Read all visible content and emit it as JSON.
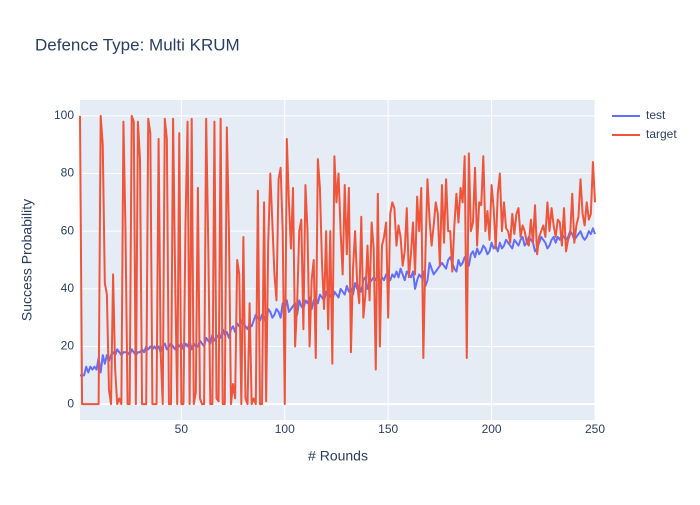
{
  "chart_data": {
    "type": "line",
    "title": "Defence Type: Multi KRUM",
    "x_label": "# Rounds",
    "y_label": "Success Probability",
    "x": [
      1,
      2,
      3,
      4,
      5,
      6,
      7,
      8,
      9,
      10,
      11,
      12,
      13,
      14,
      15,
      16,
      17,
      18,
      19,
      20,
      21,
      22,
      23,
      24,
      25,
      26,
      27,
      28,
      29,
      30,
      31,
      32,
      33,
      34,
      35,
      36,
      37,
      38,
      39,
      40,
      41,
      42,
      43,
      44,
      45,
      46,
      47,
      48,
      49,
      50,
      51,
      52,
      53,
      54,
      55,
      56,
      57,
      58,
      59,
      60,
      61,
      62,
      63,
      64,
      65,
      66,
      67,
      68,
      69,
      70,
      71,
      72,
      73,
      74,
      75,
      76,
      77,
      78,
      79,
      80,
      81,
      82,
      83,
      84,
      85,
      86,
      87,
      88,
      89,
      90,
      91,
      92,
      93,
      94,
      95,
      96,
      97,
      98,
      99,
      100,
      101,
      102,
      103,
      104,
      105,
      106,
      107,
      108,
      109,
      110,
      111,
      112,
      113,
      114,
      115,
      116,
      117,
      118,
      119,
      120,
      121,
      122,
      123,
      124,
      125,
      126,
      127,
      128,
      129,
      130,
      131,
      132,
      133,
      134,
      135,
      136,
      137,
      138,
      139,
      140,
      141,
      142,
      143,
      144,
      145,
      146,
      147,
      148,
      149,
      150,
      151,
      152,
      153,
      154,
      155,
      156,
      157,
      158,
      159,
      160,
      161,
      162,
      163,
      164,
      165,
      166,
      167,
      168,
      169,
      170,
      171,
      172,
      173,
      174,
      175,
      176,
      177,
      178,
      179,
      180,
      181,
      182,
      183,
      184,
      185,
      186,
      187,
      188,
      189,
      190,
      191,
      192,
      193,
      194,
      195,
      196,
      197,
      198,
      199,
      200,
      201,
      202,
      203,
      204,
      205,
      206,
      207,
      208,
      209,
      210,
      211,
      212,
      213,
      214,
      215,
      216,
      217,
      218,
      219,
      220,
      221,
      222,
      223,
      224,
      225,
      226,
      227,
      228,
      229,
      230,
      231,
      232,
      233,
      234,
      235,
      236,
      237,
      238,
      239,
      240,
      241,
      242,
      243,
      244,
      245,
      246,
      247,
      248,
      249,
      250
    ],
    "series": [
      {
        "name": "test",
        "color": "#636efa",
        "values": [
          10,
          10,
          10,
          13,
          11,
          13,
          12,
          13,
          12,
          16,
          11,
          17,
          14,
          17,
          15,
          17,
          18,
          17,
          19,
          18,
          17,
          18,
          18,
          18,
          17,
          19,
          18,
          17,
          18,
          18,
          19,
          18,
          20,
          19,
          20,
          19,
          20,
          19,
          20,
          18,
          20,
          21,
          19,
          20,
          21,
          20,
          19,
          21,
          20,
          21,
          19,
          21,
          20,
          22,
          19,
          21,
          20,
          20,
          22,
          21,
          20,
          23,
          22,
          21,
          24,
          22,
          23,
          24,
          23,
          26,
          24,
          25,
          23,
          26,
          27,
          25,
          28,
          27,
          29,
          28,
          27,
          26,
          28,
          27,
          29,
          31,
          30,
          29,
          31,
          30,
          28,
          33,
          32,
          30,
          31,
          33,
          32,
          30,
          35,
          33,
          36,
          32,
          33,
          34,
          35,
          31,
          36,
          34,
          33,
          36,
          35,
          37,
          33,
          36,
          37,
          35,
          38,
          37,
          36,
          39,
          37,
          38,
          36,
          39,
          38,
          37,
          40,
          39,
          38,
          41,
          39,
          40,
          38,
          42,
          40,
          41,
          39,
          43,
          44,
          40,
          42,
          43,
          44,
          43,
          45,
          42,
          44,
          43,
          45,
          44,
          43,
          45,
          44,
          46,
          44,
          47,
          45,
          43,
          46,
          45,
          44,
          46,
          40,
          43,
          45,
          44,
          46,
          41,
          43,
          49,
          47,
          45,
          46,
          47,
          48,
          49,
          48,
          47,
          50,
          51,
          49,
          47,
          46,
          50,
          48,
          49,
          51,
          50,
          48,
          52,
          53,
          51,
          54,
          52,
          53,
          55,
          54,
          52,
          53,
          56,
          54,
          55,
          53,
          56,
          54,
          55,
          57,
          56,
          55,
          54,
          57,
          56,
          55,
          57,
          58,
          55,
          56,
          58,
          57,
          56,
          53,
          54,
          56,
          58,
          57,
          56,
          54,
          55,
          57,
          58,
          56,
          58,
          57,
          59,
          58,
          57,
          58,
          60,
          59,
          57,
          58,
          59,
          60,
          58,
          57,
          58,
          60,
          59,
          61,
          59
        ]
      },
      {
        "name": "target",
        "color": "#ef553b",
        "values": [
          100,
          0,
          0,
          0,
          0,
          0,
          0,
          0,
          0,
          0,
          100,
          90,
          42,
          38,
          5,
          0,
          45,
          12,
          0,
          2,
          0,
          98,
          60,
          0,
          0,
          100,
          98,
          0,
          98,
          85,
          0,
          0,
          0,
          99,
          94,
          0,
          0,
          0,
          92,
          18,
          0,
          99,
          92,
          0,
          0,
          99,
          44,
          0,
          94,
          0,
          0,
          62,
          98,
          0,
          99,
          0,
          4,
          75,
          2,
          0,
          0,
          99,
          56,
          0,
          0,
          98,
          2,
          1,
          99,
          0,
          0,
          96,
          60,
          0,
          7,
          2,
          50,
          45,
          0,
          58,
          2,
          0,
          35,
          0,
          2,
          0,
          74,
          0,
          0,
          70,
          1,
          56,
          80,
          63,
          45,
          36,
          78,
          82,
          60,
          0,
          92,
          70,
          54,
          75,
          20,
          35,
          60,
          64,
          26,
          76,
          60,
          20,
          43,
          50,
          16,
          85,
          75,
          49,
          33,
          60,
          26,
          60,
          14,
          86,
          70,
          80,
          60,
          45,
          76,
          52,
          75,
          18,
          47,
          60,
          42,
          35,
          65,
          30,
          38,
          55,
          36,
          63,
          54,
          12,
          73,
          20,
          55,
          58,
          63,
          30,
          66,
          70,
          68,
          55,
          62,
          58,
          48,
          53,
          68,
          44,
          52,
          63,
          45,
          72,
          60,
          75,
          16,
          52,
          78,
          64,
          55,
          62,
          70,
          66,
          48,
          76,
          56,
          78,
          60,
          60,
          46,
          62,
          73,
          63,
          75,
          70,
          86,
          16,
          87,
          60,
          63,
          82,
          55,
          70,
          69,
          86,
          60,
          67,
          57,
          76,
          68,
          54,
          73,
          80,
          60,
          70,
          61,
          60,
          56,
          66,
          59,
          66,
          68,
          58,
          62,
          60,
          56,
          55,
          64,
          56,
          69,
          52,
          58,
          60,
          62,
          58,
          70,
          60,
          68,
          62,
          58,
          64,
          63,
          55,
          68,
          53,
          57,
          59,
          73,
          56,
          62,
          65,
          78,
          66,
          62,
          70,
          64,
          66,
          84,
          70
        ]
      }
    ],
    "xlim": [
      1,
      250
    ],
    "xticks": [
      50,
      100,
      150,
      200,
      250
    ],
    "ylim": [
      -5.5,
      105.5
    ],
    "yticks": [
      0,
      20,
      40,
      60,
      80,
      100
    ],
    "grid": true,
    "legend": "top-right"
  }
}
